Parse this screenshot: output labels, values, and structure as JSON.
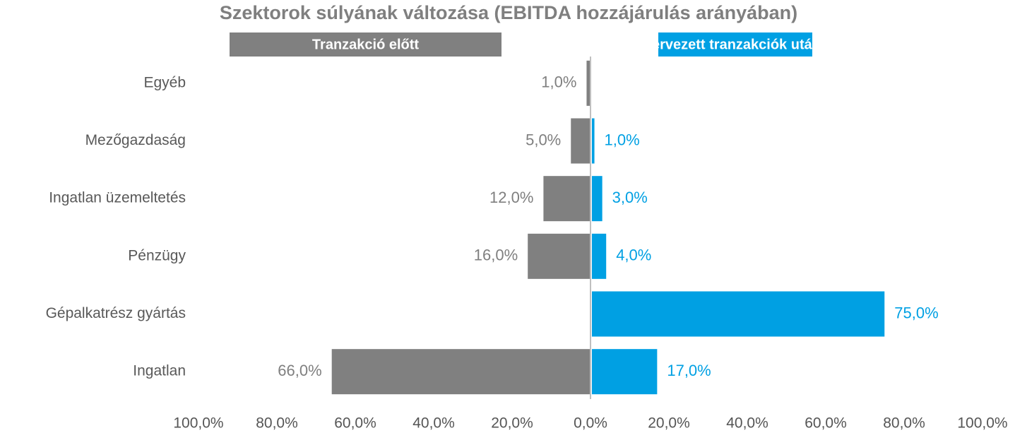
{
  "chart_data": {
    "type": "butterfly",
    "title": "Szektorok súlyának változása (EBITDA hozzájárulás arányában)",
    "categories": [
      "Egyéb",
      "Mezőgazdaság",
      "Ingatlan üzemeltetés",
      "Pénzügy",
      "Gépalkatrész gyártás",
      "Ingatlan"
    ],
    "series": [
      {
        "name": "Tranzakció előtt",
        "color": "#808080",
        "side": "left",
        "values": [
          1,
          5,
          12,
          16,
          null,
          66
        ],
        "value_labels": [
          "1,0%",
          "5,0%",
          "12,0%",
          "16,0%",
          null,
          "66,0%"
        ]
      },
      {
        "name": "Tervezett tranzakciók után*",
        "color": "#00a0e3",
        "side": "right",
        "values": [
          null,
          1,
          3,
          4,
          75,
          17
        ],
        "value_labels": [
          null,
          "1,0%",
          "3,0%",
          "4,0%",
          "75,0%",
          "17,0%"
        ]
      }
    ],
    "xlim": [
      -100,
      100
    ],
    "xticks": [
      {
        "value": -100,
        "label": "100,0%"
      },
      {
        "value": -80,
        "label": "80,0%"
      },
      {
        "value": -60,
        "label": "60,0%"
      },
      {
        "value": -40,
        "label": "40,0%"
      },
      {
        "value": -20,
        "label": "20,0%"
      },
      {
        "value": 0,
        "label": "0,0%"
      },
      {
        "value": 20,
        "label": "20,0%"
      },
      {
        "value": 40,
        "label": "40,0%"
      },
      {
        "value": 60,
        "label": "60,0%"
      },
      {
        "value": 80,
        "label": "80,0%"
      },
      {
        "value": 100,
        "label": "100,0%"
      }
    ]
  }
}
